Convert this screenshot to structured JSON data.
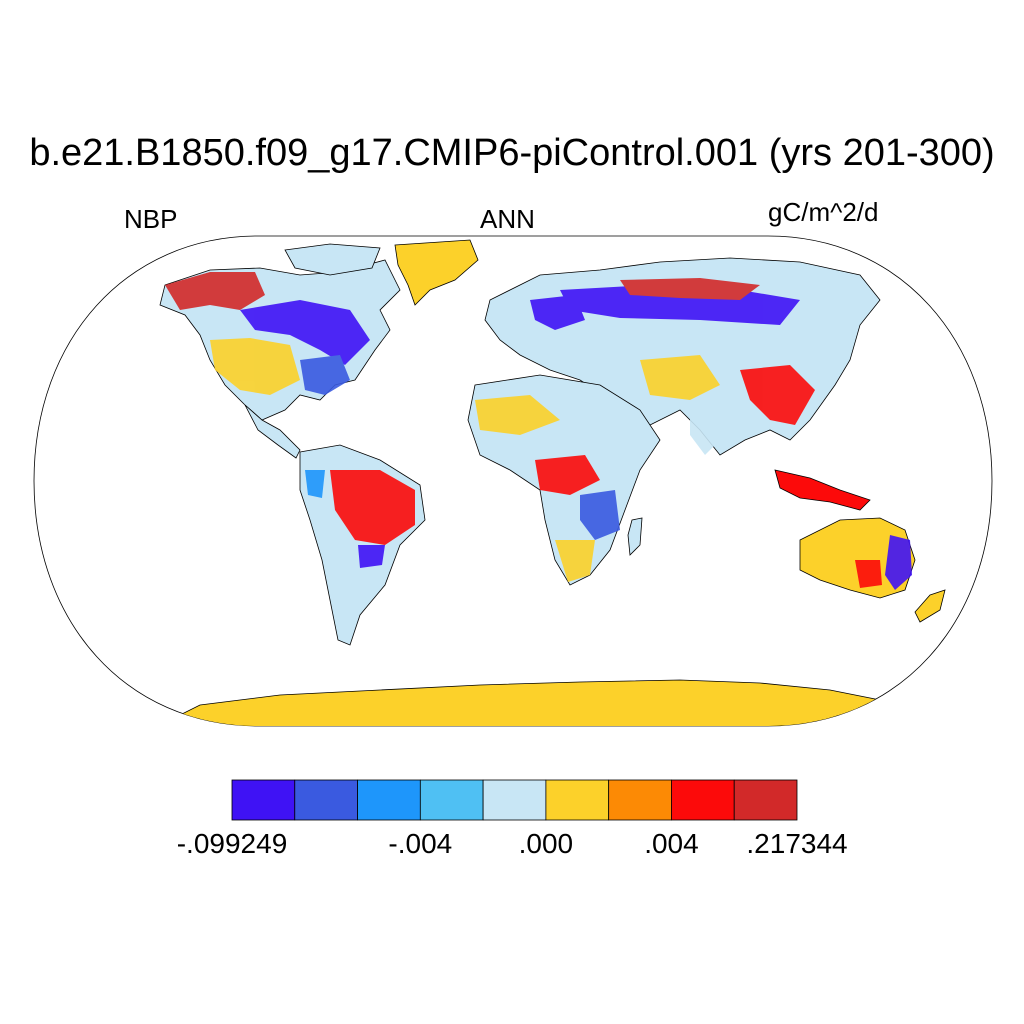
{
  "title": "b.e21.B1850.f09_g17.CMIP6-piControl.001 (yrs 201-300)",
  "left_label": "NBP",
  "center_label": "ANN",
  "right_label": "gC/m^2/d",
  "colorbar": {
    "colors": [
      "#3f12f5",
      "#3a5ae0",
      "#1e96fb",
      "#4fc0f3",
      "#c8e6f5",
      "#fcd12a",
      "#fc8a05",
      "#fc0a0a",
      "#d22929"
    ],
    "tick_labels": [
      {
        "label": "-.099249",
        "boundary": 0
      },
      {
        "label": "-.004",
        "boundary": 3
      },
      {
        "label": ".000",
        "boundary": 5
      },
      {
        "label": ".004",
        "boundary": 7
      },
      {
        "label": ".217344",
        "boundary": 9
      }
    ]
  },
  "map": {
    "projection": "Robinson",
    "ocean_color": "#ffffff",
    "coastline_color": "#000000"
  }
}
